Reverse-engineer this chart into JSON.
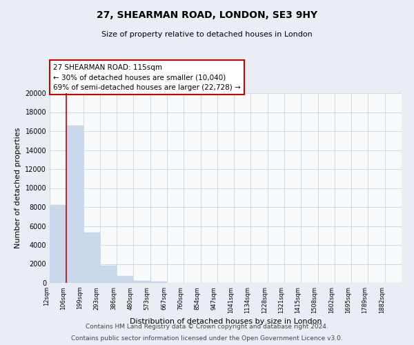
{
  "title": "27, SHEARMAN ROAD, LONDON, SE3 9HY",
  "subtitle": "Size of property relative to detached houses in London",
  "xlabel": "Distribution of detached houses by size in London",
  "ylabel": "Number of detached properties",
  "bar_labels": [
    "12sqm",
    "106sqm",
    "199sqm",
    "293sqm",
    "386sqm",
    "480sqm",
    "573sqm",
    "667sqm",
    "760sqm",
    "854sqm",
    "947sqm",
    "1041sqm",
    "1134sqm",
    "1228sqm",
    "1321sqm",
    "1415sqm",
    "1508sqm",
    "1602sqm",
    "1695sqm",
    "1789sqm",
    "1882sqm"
  ],
  "bar_values": [
    8200,
    16600,
    5300,
    1850,
    750,
    250,
    180,
    0,
    0,
    0,
    0,
    0,
    0,
    0,
    0,
    0,
    0,
    0,
    0,
    0,
    0
  ],
  "bar_color": "#c8d8ea",
  "bar_edge_color": "#c8d8ea",
  "vline_x": 1,
  "vline_color": "#cc0000",
  "ylim": [
    0,
    20000
  ],
  "yticks": [
    0,
    2000,
    4000,
    6000,
    8000,
    10000,
    12000,
    14000,
    16000,
    18000,
    20000
  ],
  "annotation_title": "27 SHEARMAN ROAD: 115sqm",
  "annotation_line1": "← 30% of detached houses are smaller (10,040)",
  "annotation_line2": "69% of semi-detached houses are larger (22,728) →",
  "annotation_box_color": "#ffffff",
  "annotation_box_edge": "#cc0000",
  "footer_line1": "Contains HM Land Registry data © Crown copyright and database right 2024.",
  "footer_line2": "Contains public sector information licensed under the Open Government Licence v3.0.",
  "background_color": "#e8eef4",
  "plot_bg_color": "#f8fafc",
  "grid_color": "#c8d4e0"
}
